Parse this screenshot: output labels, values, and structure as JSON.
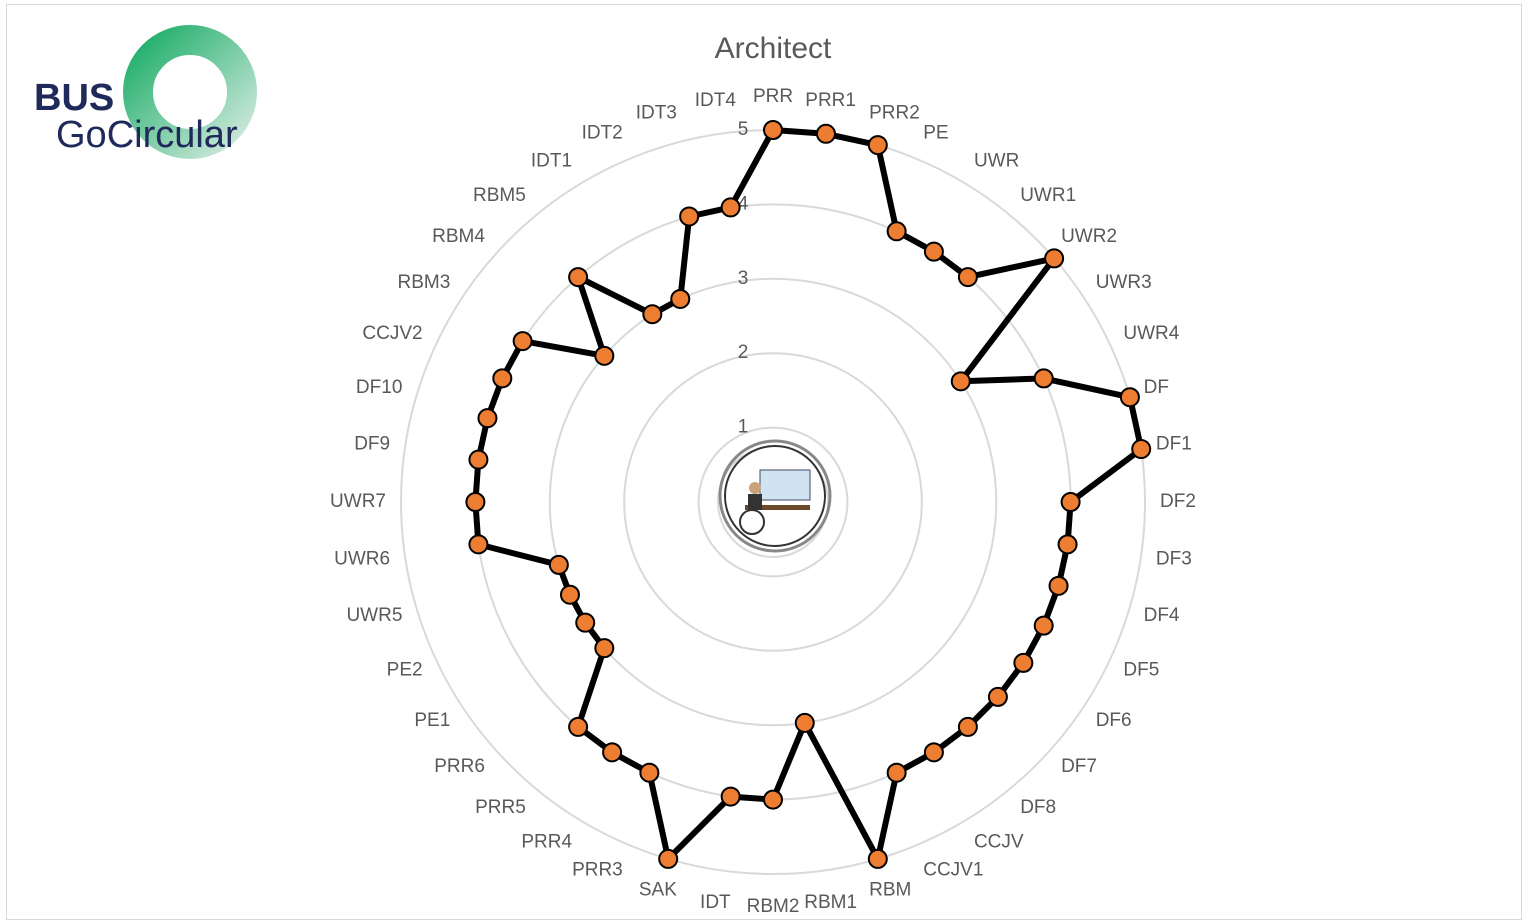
{
  "logo": {
    "line1": "BUS",
    "line2": "GoCircular"
  },
  "chart_data": {
    "type": "radar",
    "title": "Architect",
    "categories": [
      "PRR",
      "PRR1",
      "PRR2",
      "PE",
      "UWR",
      "UWR1",
      "UWR2",
      "UWR3",
      "UWR4",
      "DF",
      "DF1",
      "DF2",
      "DF3",
      "DF4",
      "DF5",
      "DF6",
      "DF7",
      "DF8",
      "CCJV",
      "CCJV1",
      "RBM",
      "RBM1",
      "RBM2",
      "IDT",
      "SAK",
      "PRR3",
      "PRR4",
      "PRR5",
      "PRR6",
      "PE1",
      "PE2",
      "UWR5",
      "UWR6",
      "UWR7",
      "DF9",
      "DF10",
      "CCJV2",
      "RBM3",
      "RBM4",
      "RBM5",
      "IDT1",
      "IDT2",
      "IDT3",
      "IDT4"
    ],
    "values": [
      5,
      5,
      5,
      4,
      4,
      4,
      5,
      3,
      4,
      5,
      5,
      4,
      4,
      4,
      4,
      4,
      4,
      4,
      4,
      4,
      5,
      3,
      4,
      4,
      5,
      4,
      4,
      4,
      3,
      3,
      3,
      3,
      4,
      4,
      4,
      4,
      4,
      4,
      3,
      4,
      3,
      3,
      4,
      4
    ],
    "color": "#ed7d31",
    "line_color": "#000000",
    "rlim": [
      0,
      5
    ],
    "rticks": [
      1,
      2,
      3,
      4,
      5
    ],
    "grid": true
  }
}
